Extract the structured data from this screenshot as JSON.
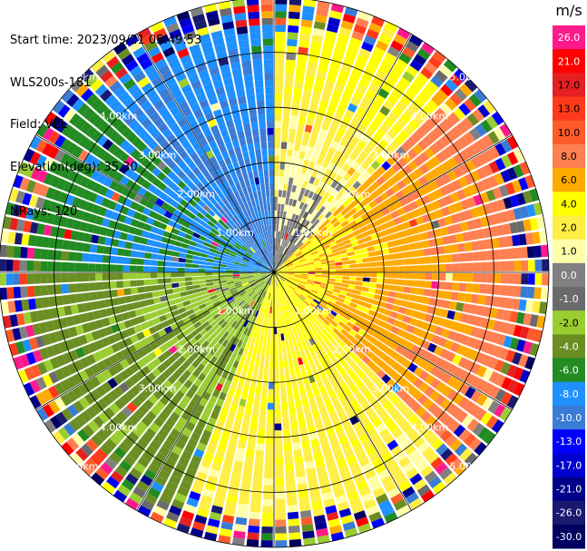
{
  "header": {
    "start_time": "Start time: 2023/09/21 05:49:53",
    "instrument": "WLS200s-181",
    "field": "Field: VEL",
    "elevation": "Elevation(deg): 35.30",
    "nrays": "NRays: 120"
  },
  "chart_data": {
    "type": "heatmap",
    "projection": "polar (PPI scan)",
    "field": "VEL",
    "elevation_deg": 35.3,
    "n_rays": 120,
    "range_rings_km": [
      1,
      2,
      3,
      4,
      5
    ],
    "ring_labels": [
      "1.00km",
      "2.00km",
      "3.00km",
      "4.00km",
      "5.00km"
    ],
    "radial_lines_deg": [
      0,
      30,
      60,
      90,
      120,
      150,
      180,
      210,
      240,
      270,
      300,
      330
    ],
    "colorbar": {
      "unit": "m/s",
      "ticks": [
        "26.0",
        "21.0",
        "17.0",
        "13.0",
        "10.0",
        "8.0",
        "6.0",
        "4.0",
        "2.0",
        "1.0",
        "0.0",
        "-1.0",
        "-2.0",
        "-4.0",
        "-6.0",
        "-8.0",
        "-10.0",
        "-13.0",
        "-17.0",
        "-21.0",
        "-26.0",
        "-30.0"
      ],
      "colors": [
        "#ff1a8c",
        "#ff0000",
        "#e62020",
        "#ff3a1a",
        "#ff5a2a",
        "#ff7f50",
        "#ffaa00",
        "#ffff00",
        "#ffee44",
        "#ffffaa",
        "#808080",
        "#6a6a6a",
        "#9acd32",
        "#6b8e23",
        "#228b22",
        "#1e90ff",
        "#3a7bd5",
        "#0000ff",
        "#0000cd",
        "#00008b",
        "#191970",
        "#000060"
      ]
    },
    "sectors": [
      {
        "azimuth_from_deg": 0,
        "azimuth_to_deg": 45,
        "inner_m_s": -1.0,
        "outer_m_s": 4.0
      },
      {
        "azimuth_from_deg": 45,
        "azimuth_to_deg": 135,
        "inner_m_s": 4.0,
        "outer_m_s": 8.0
      },
      {
        "azimuth_from_deg": 135,
        "azimuth_to_deg": 200,
        "inner_m_s": 4.0,
        "outer_m_s": 2.0
      },
      {
        "azimuth_from_deg": 200,
        "azimuth_to_deg": 270,
        "inner_m_s": -2.0,
        "outer_m_s": -4.0
      },
      {
        "azimuth_from_deg": 270,
        "azimuth_to_deg": 315,
        "inner_m_s": -8.0,
        "outer_m_s": -6.0
      },
      {
        "azimuth_from_deg": 315,
        "azimuth_to_deg": 360,
        "inner_m_s": -10.0,
        "outer_m_s": -8.0
      }
    ],
    "noise_ring_start_km": 4.3
  }
}
